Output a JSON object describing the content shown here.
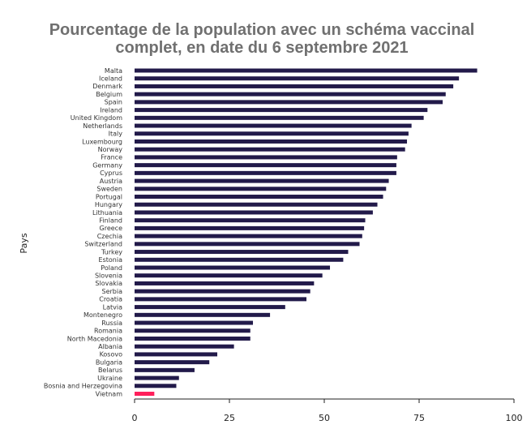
{
  "chart_data": {
    "type": "bar",
    "orientation": "horizontal",
    "title_lines": [
      "Pourcentage de la population avec un schéma vaccinal",
      "complet, en date du 6 septembre 2021"
    ],
    "xlabel": "",
    "ylabel": "Pays",
    "xlim": [
      0,
      100
    ],
    "xticks": [
      "0",
      "25",
      "50",
      "75",
      "100"
    ],
    "grid": false,
    "categories": [
      "Malta",
      "Iceland",
      "Denmark",
      "Belgium",
      "Spain",
      "Ireland",
      "United Kingdom",
      "Netherlands",
      "Italy",
      "Luxembourg",
      "Norway",
      "France",
      "Germany",
      "Cyprus",
      "Austria",
      "Sweden",
      "Portugal",
      "Hungary",
      "Lithuania",
      "Finland",
      "Greece",
      "Czechia",
      "Switzerland",
      "Turkey",
      "Estonia",
      "Poland",
      "Slovenia",
      "Slovakia",
      "Serbia",
      "Croatia",
      "Latvia",
      "Montenegro",
      "Russia",
      "Romania",
      "North Macedonia",
      "Albania",
      "Kosovo",
      "Bulgaria",
      "Belarus",
      "Ukraine",
      "Bosnia and Herzegovina",
      "Vietnam"
    ],
    "values": [
      90.3,
      85.5,
      84.0,
      82.0,
      81.2,
      77.2,
      76.2,
      73.0,
      72.2,
      71.8,
      71.3,
      69.2,
      69.0,
      69.0,
      67.0,
      66.3,
      65.5,
      64.0,
      62.8,
      60.8,
      60.5,
      60.0,
      59.3,
      56.3,
      55.0,
      51.5,
      49.5,
      47.3,
      46.3,
      45.3,
      39.7,
      35.7,
      31.2,
      30.5,
      30.5,
      26.2,
      21.8,
      19.7,
      15.8,
      11.7,
      11.0,
      5.2
    ],
    "colors": {
      "default": "#221a4a",
      "highlight": "#ff1f5b"
    },
    "highlight_category": "Vietnam"
  }
}
